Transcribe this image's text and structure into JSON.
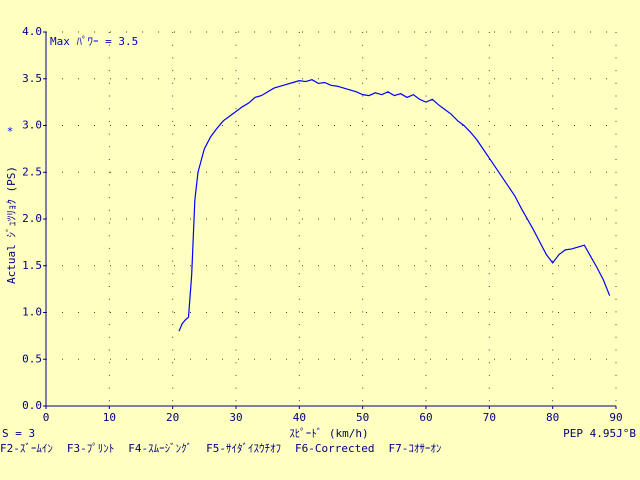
{
  "chart_data": {
    "type": "line",
    "annotation": "Max ﾊﾟﾜｰ =  3.5",
    "ylabel": "Actual ｼﾞｭﾂﾘｮｸ (PS)",
    "ylabel_marker": "*",
    "xlabel": "ｽﾋﾟｰﾄﾞ (km/h)",
    "status_left": "S = 3",
    "status_right": "PEP 4.95J°B",
    "function_keys": [
      "F2-ｽﾞｰﾑｲﾝ",
      "F3-ﾌﾟﾘﾝﾄ",
      "F4-ｽﾑｰｼﾞﾝｸﾞ",
      "F5-ｻｲﾀﾞｲｽｳﾁｵﾌ",
      "F6-Corrected",
      "F7-ｺｵｻｰｵﾝ"
    ],
    "x": [
      21,
      21.5,
      22,
      22.5,
      23,
      23.5,
      24,
      25,
      26,
      27,
      28,
      29,
      30,
      31,
      32,
      33,
      34,
      35,
      36,
      37,
      38,
      39,
      40,
      41,
      42,
      43,
      44,
      45,
      46,
      47,
      48,
      49,
      50,
      51,
      52,
      53,
      54,
      55,
      56,
      57,
      58,
      59,
      60,
      61,
      62,
      63,
      64,
      65,
      66,
      67,
      68,
      69,
      70,
      71,
      72,
      73,
      74,
      75,
      76,
      77,
      78,
      79,
      80,
      81,
      82,
      83,
      84,
      85,
      86,
      87,
      88,
      89
    ],
    "series": [
      {
        "color": "#0000ff",
        "values": [
          0.8,
          0.88,
          0.92,
          0.95,
          1.4,
          2.2,
          2.5,
          2.75,
          2.88,
          2.97,
          3.05,
          3.1,
          3.15,
          3.2,
          3.24,
          3.3,
          3.32,
          3.36,
          3.4,
          3.42,
          3.44,
          3.46,
          3.48,
          3.47,
          3.49,
          3.45,
          3.46,
          3.43,
          3.42,
          3.4,
          3.38,
          3.36,
          3.33,
          3.32,
          3.35,
          3.33,
          3.36,
          3.32,
          3.34,
          3.3,
          3.33,
          3.28,
          3.25,
          3.28,
          3.22,
          3.17,
          3.12,
          3.05,
          3.0,
          2.93,
          2.85,
          2.75,
          2.65,
          2.55,
          2.45,
          2.35,
          2.25,
          2.12,
          2.0,
          1.88,
          1.75,
          1.62,
          1.53,
          1.62,
          1.67,
          1.68,
          1.7,
          1.72,
          1.6,
          1.48,
          1.35,
          1.18
        ]
      }
    ],
    "xlim": [
      0,
      90
    ],
    "xticks": [
      0,
      10,
      20,
      30,
      40,
      50,
      60,
      70,
      80,
      90
    ],
    "ylim": [
      0,
      4
    ],
    "yticks": [
      {
        "value": 0,
        "label": "0.0"
      },
      0.5,
      {
        "value": 1,
        "label": "1.0"
      },
      1.5,
      {
        "value": 2,
        "label": "2.0"
      },
      2.5,
      {
        "value": 3,
        "label": "3.0"
      },
      3.5,
      {
        "value": 4,
        "label": "4.0"
      }
    ],
    "grid": true
  }
}
